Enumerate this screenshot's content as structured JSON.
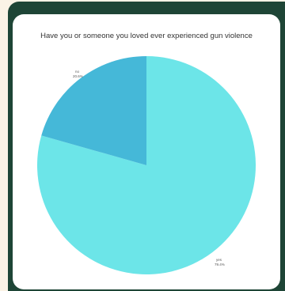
{
  "chart_data": {
    "type": "pie",
    "title": "Have you or someone you loved ever experienced gun violence",
    "slices": [
      {
        "label": "yes",
        "value": 79.4,
        "display": "79.4%",
        "color": "#6ce5e8"
      },
      {
        "label": "no",
        "value": 20.6,
        "display": "20.6%",
        "color": "#45b8d8"
      }
    ]
  }
}
